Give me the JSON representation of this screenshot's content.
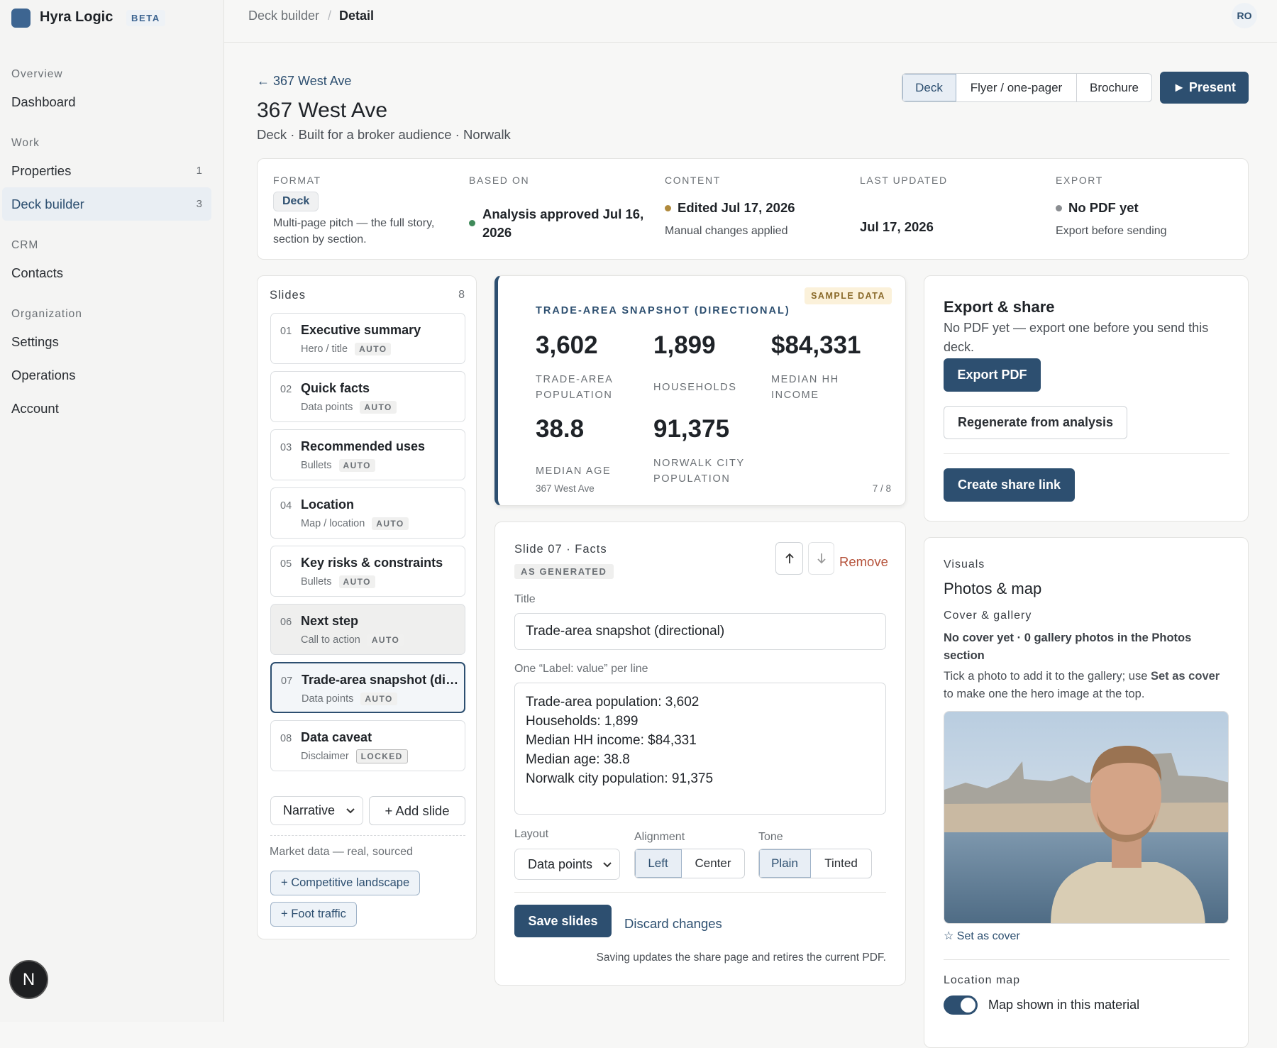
{
  "sidebar": {
    "brand": "Hyra Logic",
    "badge": "BETA",
    "sections": [
      {
        "heading": "Overview",
        "items": [
          {
            "label": "Dashboard"
          }
        ]
      },
      {
        "heading": "Work",
        "items": [
          {
            "label": "Properties",
            "count": "1"
          },
          {
            "label": "Deck builder",
            "count": "3",
            "selected": true
          }
        ]
      },
      {
        "heading": "CRM",
        "items": [
          {
            "label": "Contacts"
          }
        ]
      },
      {
        "heading": "Organization",
        "items": [
          {
            "label": "Settings"
          },
          {
            "label": "Operations"
          },
          {
            "label": "Account"
          }
        ]
      }
    ],
    "avatar": "N"
  },
  "topbar": {
    "breadcrumb": [
      "Deck builder",
      "Detail"
    ],
    "separator": "/",
    "user": "RO"
  },
  "header": {
    "back": "← 367 West Ave",
    "title": "367 West Ave",
    "subtitle": "Deck · Built for a broker audience · Norwalk",
    "formats": [
      "Deck",
      "Flyer / one-pager",
      "Brochure"
    ],
    "present": "► Present"
  },
  "summary": [
    {
      "label": "FORMAT",
      "pill": "Deck",
      "detail": "Multi-page pitch — the full story, section by section."
    },
    {
      "label": "BASED ON",
      "value": "Analysis approved Jul 16, 2026"
    },
    {
      "label": "CONTENT",
      "value": "Edited Jul 17, 2026",
      "detail": "Manual changes applied"
    },
    {
      "label": "LAST UPDATED",
      "value": "Jul 17, 2026"
    },
    {
      "label": "EXPORT",
      "value": "No PDF yet",
      "detail": "Export before sending"
    }
  ],
  "slides": {
    "heading": "Slides",
    "count": "8",
    "items": [
      {
        "num": "01",
        "title": "Executive summary",
        "kind": "Hero / title",
        "tag": "AUTO"
      },
      {
        "num": "02",
        "title": "Quick facts",
        "kind": "Data points",
        "tag": "AUTO"
      },
      {
        "num": "03",
        "title": "Recommended uses",
        "kind": "Bullets",
        "tag": "AUTO"
      },
      {
        "num": "04",
        "title": "Location",
        "kind": "Map / location",
        "tag": "AUTO"
      },
      {
        "num": "05",
        "title": "Key risks & constraints",
        "kind": "Bullets",
        "tag": "AUTO"
      },
      {
        "num": "06",
        "title": "Next step",
        "kind": "Call to action",
        "tag": "AUTO",
        "disabled": true
      },
      {
        "num": "07",
        "title": "Trade-area snapshot (directional)",
        "kind": "Data points",
        "tag": "AUTO",
        "selected": true
      },
      {
        "num": "08",
        "title": "Data caveat",
        "kind": "Disclaimer",
        "tag": "LOCKED"
      }
    ],
    "mode": "Narrative",
    "add": "+ Add slide",
    "market_heading": "Market data — real, sourced",
    "market": [
      "+ Competitive landscape",
      "+ Foot traffic"
    ]
  },
  "preview": {
    "tag": "SAMPLE DATA",
    "heading": "TRADE-AREA SNAPSHOT (DIRECTIONAL)",
    "stats": [
      {
        "value": "3,602",
        "label": "TRADE-AREA POPULATION"
      },
      {
        "value": "1,899",
        "label": "HOUSEHOLDS"
      },
      {
        "value": "$84,331",
        "label": "MEDIAN HH INCOME"
      },
      {
        "value": "38.8",
        "label": "MEDIAN AGE"
      },
      {
        "value": "91,375",
        "label": "NORWALK CITY POPULATION"
      }
    ],
    "footer": "367 West Ave",
    "page": "7 / 8"
  },
  "editor": {
    "heading": "Slide 07 · Facts",
    "badge": "AS GENERATED",
    "remove": "Remove",
    "title_label": "Title",
    "title_value": "Trade-area snapshot (directional)",
    "lines_label": "One “Label: value” per line",
    "lines": [
      "Trade-area population: 3,602",
      "Households: 1,899",
      "Median HH income: $84,331",
      "Median age: 38.8",
      "Norwalk city population: 91,375"
    ],
    "layout_label": "Layout",
    "layout_value": "Data points",
    "alignment_label": "Alignment",
    "alignment": [
      "Left",
      "Center"
    ],
    "tone_label": "Tone",
    "tone": [
      "Plain",
      "Tinted"
    ],
    "save": "Save slides",
    "discard": "Discard changes",
    "note": "Saving updates the share page and retires the current PDF."
  },
  "export": {
    "title": "Export & share",
    "text": "No PDF yet — export one before you send this deck.",
    "export_pdf": "Export PDF",
    "regenerate": "Regenerate from analysis",
    "share": "Create share link"
  },
  "visuals": {
    "eyebrow": "Visuals",
    "title": "Photos & map",
    "cover_heading": "Cover & gallery",
    "status": "No cover yet · 0 gallery photos in the Photos section",
    "hint": [
      "Tick a photo to add it to the gallery; use ",
      "Set as cover",
      " to make one the hero image at the top."
    ],
    "set_cover": "☆ Set as cover",
    "map_heading": "Location map",
    "map_toggle": "Map shown in this material"
  }
}
